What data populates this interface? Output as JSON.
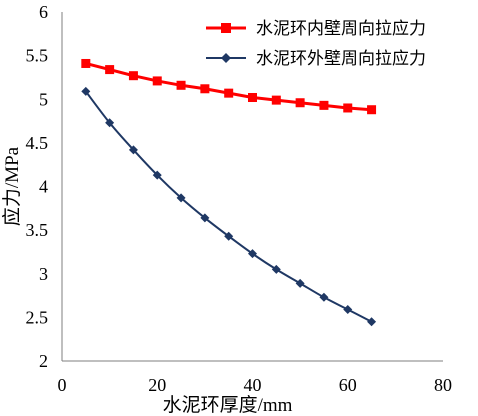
{
  "chart_data": {
    "type": "line",
    "title": "",
    "xlabel": "水泥环厚度/mm",
    "ylabel": "应力/MPa",
    "xlim": [
      0,
      80
    ],
    "ylim": [
      2,
      6
    ],
    "xticks": [
      0,
      20,
      40,
      60,
      80
    ],
    "yticks": [
      2,
      2.5,
      3,
      3.5,
      4,
      4.5,
      5,
      5.5,
      6
    ],
    "grid": false,
    "legend_position": "top-right",
    "x": [
      5,
      10,
      15,
      20,
      25,
      30,
      35,
      40,
      45,
      50,
      55,
      60,
      65
    ],
    "series": [
      {
        "name": "水泥环内壁周向拉应力",
        "color": "#ff0000",
        "marker": "square",
        "values": [
          5.41,
          5.34,
          5.27,
          5.21,
          5.16,
          5.12,
          5.07,
          5.02,
          4.99,
          4.96,
          4.93,
          4.9,
          4.88
        ]
      },
      {
        "name": "水泥环外壁周向拉应力",
        "color": "#1f3864",
        "marker": "diamond",
        "values": [
          5.09,
          4.73,
          4.42,
          4.13,
          3.87,
          3.64,
          3.43,
          3.23,
          3.05,
          2.89,
          2.73,
          2.59,
          2.45
        ]
      }
    ]
  }
}
